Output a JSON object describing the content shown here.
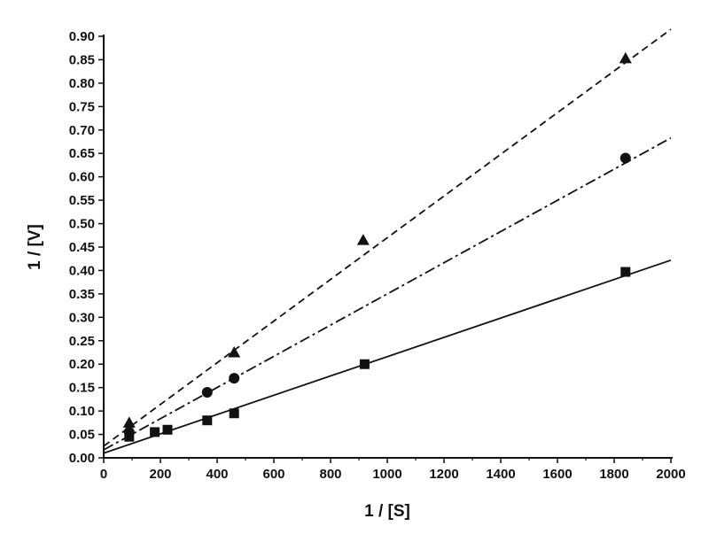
{
  "colors": {
    "ink": "#111111",
    "background": "#ffffff"
  },
  "chart_data": {
    "type": "scatter",
    "title": "",
    "xlabel": "1 / [S]",
    "ylabel": "1 / [V]",
    "xlim": [
      0,
      2000
    ],
    "ylim": [
      0,
      0.9
    ],
    "xticks": [
      0,
      200,
      400,
      600,
      800,
      1000,
      1200,
      1400,
      1600,
      1800,
      2000
    ],
    "xtick_labels": [
      "0",
      "200",
      "400",
      "600",
      "800",
      "1000",
      "1200",
      "1400",
      "1600",
      "1800",
      "2000"
    ],
    "yticks": [
      0,
      0.05,
      0.1,
      0.15,
      0.2,
      0.25,
      0.3,
      0.35,
      0.4,
      0.45,
      0.5,
      0.55,
      0.6,
      0.65,
      0.7,
      0.75,
      0.8,
      0.85,
      0.9
    ],
    "ytick_labels": [
      "0.00",
      "0.05",
      "0.10",
      "0.15",
      "0.20",
      "0.25",
      "0.30",
      "0.35",
      "0.40",
      "0.45",
      "0.50",
      "0.55",
      "0.60",
      "0.65",
      "0.70",
      "0.75",
      "0.80",
      "0.85",
      "0.90"
    ],
    "grid": false,
    "legend": "none",
    "series": [
      {
        "marker": "square",
        "line_style": "solid",
        "x": [
          90,
          180,
          225,
          365,
          460,
          920,
          1840
        ],
        "y": [
          0.045,
          0.055,
          0.06,
          0.08,
          0.095,
          0.2,
          0.397
        ],
        "fit": {
          "x": [
            0,
            2000
          ],
          "y": [
            0.01,
            0.422
          ]
        }
      },
      {
        "marker": "circle",
        "line_style": "dash-dot",
        "x": [
          90,
          365,
          460,
          1840
        ],
        "y": [
          0.055,
          0.14,
          0.17,
          0.64
        ],
        "fit": {
          "x": [
            0,
            2000
          ],
          "y": [
            0.017,
            0.683
          ]
        }
      },
      {
        "marker": "triangle",
        "line_style": "dashed",
        "x": [
          90,
          460,
          915,
          1840
        ],
        "y": [
          0.075,
          0.225,
          0.465,
          0.853
        ],
        "fit": {
          "x": [
            0,
            2000
          ],
          "y": [
            0.025,
            0.915
          ]
        }
      }
    ]
  }
}
